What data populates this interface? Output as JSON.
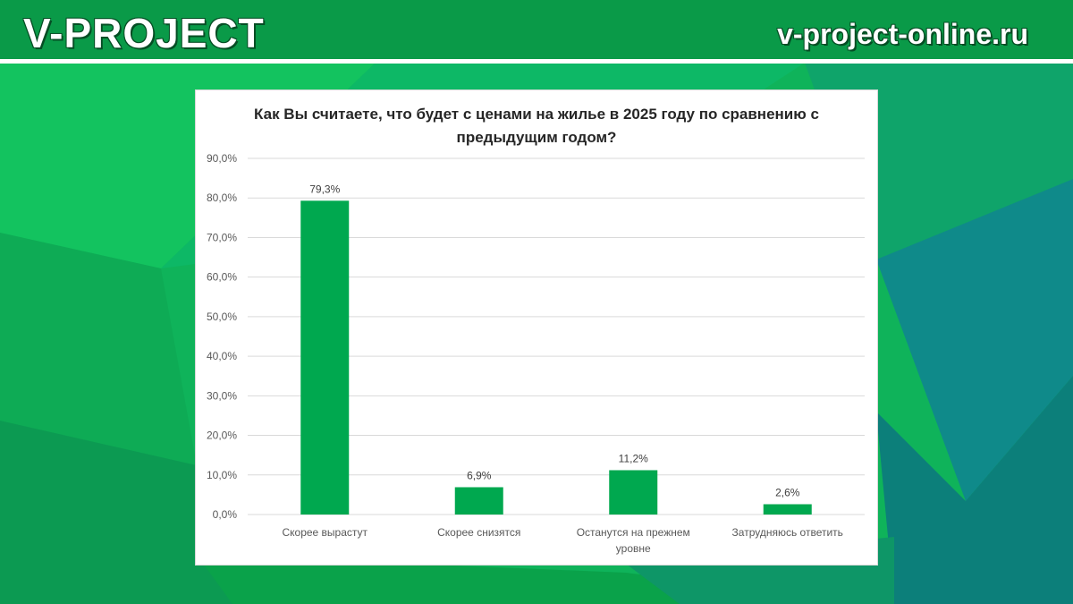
{
  "header": {
    "brand": "V-PROJECT",
    "site": "v-project-online.ru"
  },
  "colors": {
    "bar": "#00a84f",
    "header_bg": "#0a9a48",
    "background_green": "#0fb35a",
    "background_teal": "#0f8f82"
  },
  "chart_data": {
    "type": "bar",
    "title": "Как Вы считаете, что будет с ценами на жилье в 2025 году по сравнению с предыдущим годом?",
    "categories": [
      "Скорее вырастут",
      "Скорее снизятся",
      "Останутся на прежнем уровне",
      "Затрудняюсь ответить"
    ],
    "category_lines": [
      [
        "Скорее вырастут"
      ],
      [
        "Скорее снизятся"
      ],
      [
        "Останутся на прежнем",
        "уровне"
      ],
      [
        "Затрудняюсь ответить"
      ]
    ],
    "values": [
      79.3,
      6.9,
      11.2,
      2.6
    ],
    "data_labels": [
      "79,3%",
      "6,9%",
      "11,2%",
      "2,6%"
    ],
    "y_ticks": [
      0,
      10,
      20,
      30,
      40,
      50,
      60,
      70,
      80,
      90
    ],
    "y_tick_labels": [
      "0,0%",
      "10,0%",
      "20,0%",
      "30,0%",
      "40,0%",
      "50,0%",
      "60,0%",
      "70,0%",
      "80,0%",
      "90,0%"
    ],
    "ylim": [
      0,
      90
    ],
    "xlabel": "",
    "ylabel": "",
    "grid": true,
    "legend": "none"
  }
}
